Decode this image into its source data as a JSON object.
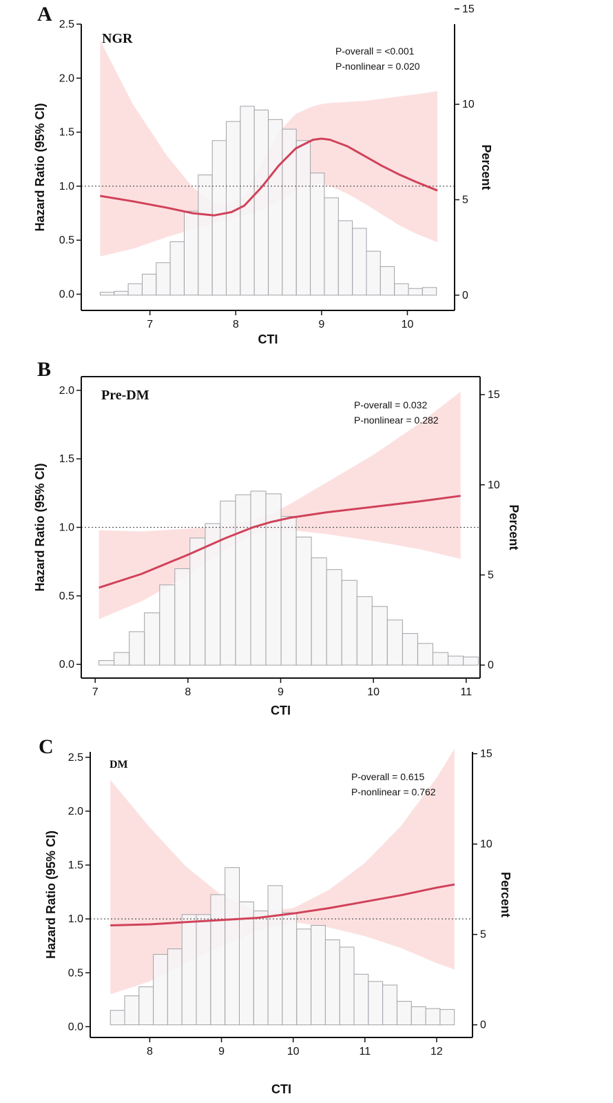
{
  "colors": {
    "curve": "#d0425a",
    "band": "#fbd8d8",
    "bar_fill": "#f5f5f7",
    "bar_stroke": "#a2a2a8",
    "axis": "#111111",
    "refline": "#555555"
  },
  "chart_data": [
    {
      "panel": "A",
      "subtitle": "NGR",
      "type": "bar+line",
      "xlabel": "CTI",
      "ylabel": "Hazard Ratio (95% CI)",
      "y2label": "Percent",
      "xlim": [
        6.2,
        10.55
      ],
      "ylim": [
        -0.15,
        2.5
      ],
      "y2lim": [
        -0.8,
        14.2
      ],
      "xticks": [
        7,
        8,
        9,
        10
      ],
      "yticks": [
        0.0,
        0.5,
        1.0,
        1.5,
        2.0,
        2.5
      ],
      "y2ticks": [
        0,
        5,
        10,
        15
      ],
      "ref_line": 1.0,
      "p_overall": "P-overall = <0.001",
      "p_nonlinear": "P-nonlinear = 0.020",
      "histogram": {
        "start": 6.42,
        "width": 0.1633,
        "percent": [
          0.15,
          0.2,
          0.6,
          1.1,
          1.7,
          2.8,
          4.4,
          6.3,
          8.1,
          9.1,
          9.9,
          9.7,
          9.2,
          8.7,
          8.1,
          6.4,
          5.1,
          3.9,
          3.5,
          2.3,
          1.5,
          0.6,
          0.35,
          0.4
        ]
      },
      "curve": {
        "x": [
          6.42,
          6.8,
          7.2,
          7.5,
          7.75,
          7.95,
          8.1,
          8.3,
          8.5,
          8.7,
          8.9,
          9.0,
          9.1,
          9.3,
          9.5,
          9.7,
          9.9,
          10.1,
          10.35
        ],
        "hr": [
          0.91,
          0.86,
          0.8,
          0.75,
          0.73,
          0.76,
          0.82,
          0.99,
          1.19,
          1.35,
          1.43,
          1.44,
          1.43,
          1.37,
          1.28,
          1.19,
          1.11,
          1.04,
          0.96
        ],
        "lower": [
          0.35,
          0.42,
          0.53,
          0.6,
          0.66,
          0.7,
          0.73,
          0.78,
          0.86,
          0.96,
          1.02,
          1.02,
          1.0,
          0.93,
          0.84,
          0.74,
          0.64,
          0.56,
          0.48
        ],
        "upper": [
          2.35,
          1.76,
          1.28,
          0.99,
          0.84,
          0.84,
          0.91,
          1.2,
          1.5,
          1.67,
          1.74,
          1.76,
          1.77,
          1.78,
          1.79,
          1.81,
          1.83,
          1.85,
          1.88
        ]
      }
    },
    {
      "panel": "B",
      "subtitle": "Pre-DM",
      "type": "bar+line",
      "xlabel": "CTI",
      "ylabel": "Hazard Ratio (95% CI)",
      "y2label": "Percent",
      "xlim": [
        6.85,
        11.15
      ],
      "ylim": [
        -0.1,
        2.1
      ],
      "y2lim": [
        -0.72,
        16.0
      ],
      "xticks": [
        7,
        8,
        9,
        10,
        11
      ],
      "yticks": [
        0.0,
        0.5,
        1.0,
        1.5,
        2.0
      ],
      "y2ticks": [
        0,
        5,
        10,
        15
      ],
      "ref_line": 1.0,
      "p_overall": "P-overall = 0.032",
      "p_nonlinear": "P-nonlinear = 0.282",
      "histogram": {
        "start": 7.04,
        "width": 0.1637,
        "percent": [
          0.25,
          0.7,
          1.85,
          2.9,
          4.45,
          5.35,
          7.05,
          7.85,
          9.1,
          9.45,
          9.65,
          9.5,
          8.25,
          7.1,
          5.95,
          5.3,
          4.7,
          3.8,
          3.25,
          2.5,
          1.75,
          1.2,
          0.7,
          0.5,
          0.45
        ]
      },
      "curve": {
        "x": [
          7.04,
          7.5,
          8.0,
          8.4,
          8.7,
          8.9,
          9.1,
          9.5,
          10.0,
          10.5,
          10.94
        ],
        "hr": [
          0.56,
          0.66,
          0.8,
          0.92,
          1.0,
          1.04,
          1.07,
          1.11,
          1.15,
          1.19,
          1.23
        ],
        "lower": [
          0.33,
          0.46,
          0.65,
          0.84,
          0.95,
          0.98,
          0.98,
          0.95,
          0.9,
          0.84,
          0.77
        ],
        "upper": [
          0.98,
          0.97,
          0.99,
          1.01,
          1.05,
          1.1,
          1.17,
          1.33,
          1.53,
          1.76,
          1.99
        ]
      }
    },
    {
      "panel": "C",
      "subtitle": "DM",
      "type": "bar+line",
      "xlabel": "CTI",
      "ylabel": "Hazard Ratio (95% CI)",
      "y2label": "Percent",
      "xlim": [
        7.17,
        12.5
      ],
      "ylim": [
        -0.1,
        2.55
      ],
      "y2lim": [
        -0.7,
        15.1
      ],
      "xticks": [
        8,
        9,
        10,
        11,
        12
      ],
      "yticks": [
        0.0,
        0.5,
        1.0,
        1.5,
        2.0,
        2.5
      ],
      "y2ticks": [
        0,
        5,
        10,
        15
      ],
      "ref_line": 1.0,
      "p_overall": "P-overall = 0.615",
      "p_nonlinear": "P-nonlinear = 0.762",
      "histogram": {
        "start": 7.45,
        "width": 0.1999,
        "percent": [
          0.8,
          1.6,
          2.1,
          3.9,
          4.2,
          6.1,
          6.1,
          7.2,
          8.7,
          6.8,
          6.3,
          7.7,
          6.2,
          5.3,
          5.5,
          4.7,
          4.3,
          2.8,
          2.4,
          2.2,
          1.3,
          1.0,
          0.9,
          0.85
        ]
      },
      "curve": {
        "x": [
          7.45,
          8.0,
          8.5,
          9.0,
          9.5,
          10.0,
          10.5,
          11.0,
          11.5,
          12.0,
          12.25
        ],
        "hr": [
          0.94,
          0.95,
          0.97,
          0.99,
          1.01,
          1.05,
          1.1,
          1.16,
          1.22,
          1.29,
          1.32
        ],
        "lower": [
          0.3,
          0.42,
          0.59,
          0.75,
          0.89,
          0.97,
          0.92,
          0.84,
          0.73,
          0.59,
          0.53
        ],
        "upper": [
          2.29,
          1.85,
          1.49,
          1.22,
          1.06,
          1.1,
          1.27,
          1.52,
          1.86,
          2.31,
          2.58
        ]
      }
    }
  ]
}
